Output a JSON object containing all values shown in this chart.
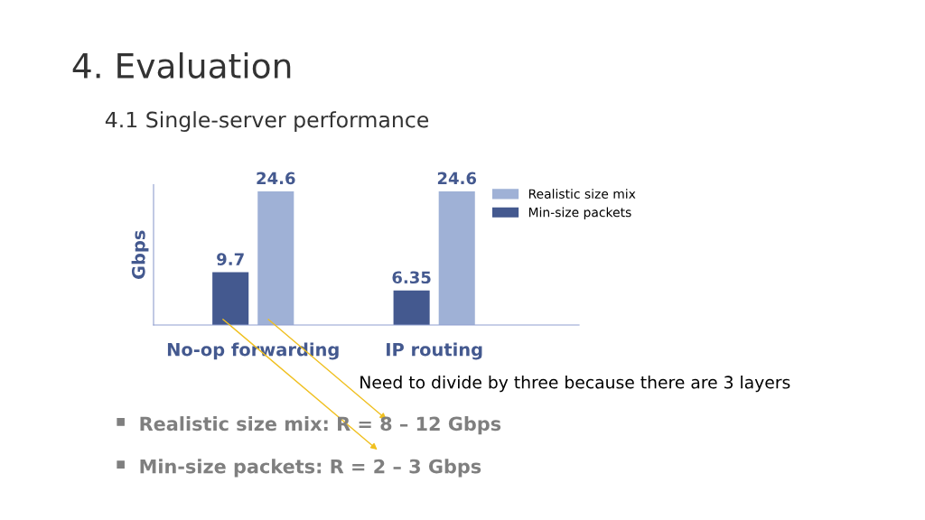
{
  "chart_data": {
    "type": "bar",
    "title": "4. Evaluation",
    "subtitle": "4.1 Single-server performance",
    "ylabel": "Gbps",
    "categories": [
      "No-op forwarding",
      "IP routing"
    ],
    "series": [
      {
        "name": "Min-size packets",
        "color": "#44598f",
        "values": [
          9.7,
          6.35
        ]
      },
      {
        "name": "Realistic size mix",
        "color": "#9fb1d6",
        "values": [
          24.6,
          24.6
        ]
      }
    ],
    "data_labels": true,
    "legend": "top right",
    "grid": false,
    "annotations": [
      "Need to divide by three because there are 3 layers",
      "Realistic size mix: R = 8 – 12 Gbps",
      "Min-size packets: R = 2 – 3 Gbps"
    ]
  }
}
